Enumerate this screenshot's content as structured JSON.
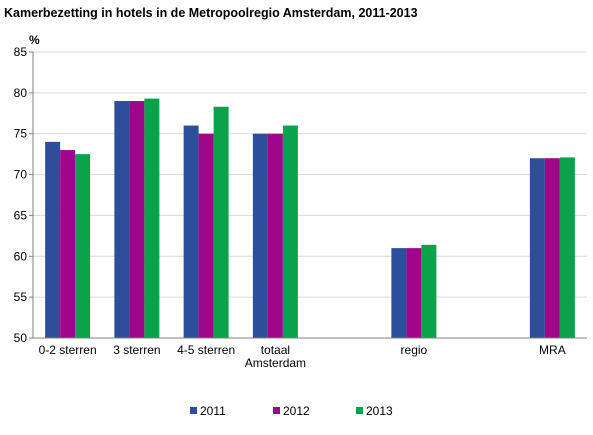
{
  "chart_data": {
    "type": "bar",
    "title": "Kamerbezetting in hotels in de Metropoolregio Amsterdam, 2011-2013",
    "ylabel": "%",
    "xlabel": "",
    "ylim": [
      50,
      85
    ],
    "yticks": [
      50,
      55,
      60,
      65,
      70,
      75,
      80,
      85
    ],
    "grid": true,
    "legend_position": "bottom",
    "categories": [
      [
        "0-2 sterren"
      ],
      [
        "3 sterren"
      ],
      [
        "4-5 sterren"
      ],
      [
        "totaal",
        "Amsterdam"
      ],
      [
        "regio"
      ],
      [
        "MRA"
      ]
    ],
    "slot_index": [
      0,
      1,
      2,
      3,
      5,
      7
    ],
    "slot_count": 8,
    "series": [
      {
        "name": "2011",
        "color": "#2e4d9a",
        "values": [
          74,
          79,
          76,
          75,
          61,
          72
        ]
      },
      {
        "name": "2012",
        "color": "#a0068a",
        "values": [
          73,
          79,
          75,
          75,
          61,
          72
        ]
      },
      {
        "name": "2013",
        "color": "#0aa34b",
        "values": [
          72.5,
          79.3,
          78.3,
          76,
          61.4,
          72.1
        ]
      }
    ]
  }
}
